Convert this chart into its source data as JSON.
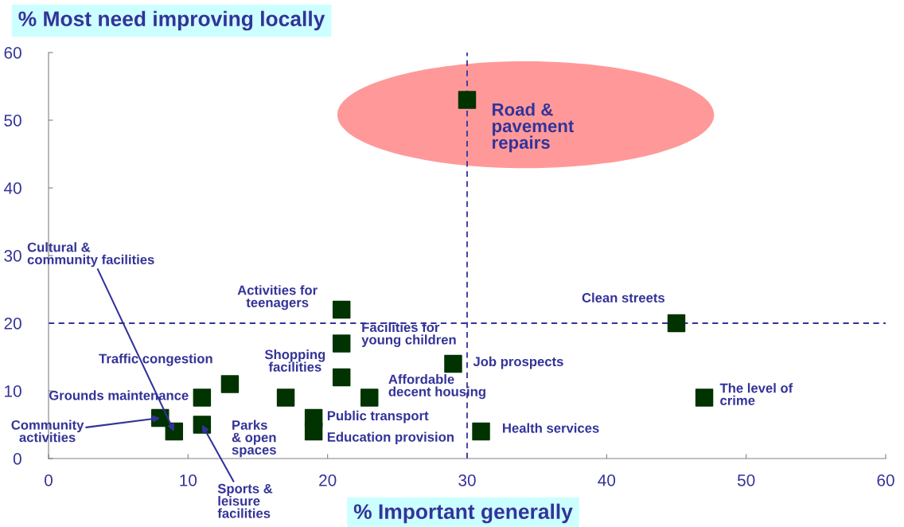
{
  "chart_data": {
    "type": "scatter",
    "xlabel": "% Important generally",
    "ylabel": "% Most need improving locally",
    "x": [
      30,
      45,
      47,
      31,
      29,
      21,
      21,
      21,
      23,
      19,
      19,
      17,
      13,
      11,
      11,
      9,
      8
    ],
    "series": [
      {
        "color": "#003300",
        "values": [
          53,
          20,
          9,
          4,
          14,
          22,
          17,
          12,
          9,
          6,
          4,
          9,
          11,
          9,
          5,
          4,
          6
        ]
      }
    ],
    "marker": "square",
    "xlim": [
      0,
      60
    ],
    "ylim": [
      0,
      60
    ],
    "xticks": [
      0,
      10,
      20,
      30,
      40,
      50,
      60
    ],
    "yticks": [
      0,
      10,
      20,
      30,
      40,
      50,
      60
    ],
    "grid": false,
    "legend": false,
    "ref_lines": [
      {
        "axis": "x",
        "value": 30,
        "color": "#333399",
        "line_style": "dashed"
      },
      {
        "axis": "y",
        "value": 20,
        "color": "#333399",
        "line_style": "dashed"
      }
    ],
    "annotations": [
      {
        "text": "Road &\npavement\nrepairs",
        "x": 30,
        "y": 53
      },
      {
        "text": "Clean streets",
        "x": 45,
        "y": 20
      },
      {
        "text": "The level of\ncrime",
        "x": 47,
        "y": 9
      },
      {
        "text": "Health services",
        "x": 31,
        "y": 4
      },
      {
        "text": "Job prospects",
        "x": 29,
        "y": 14
      },
      {
        "text": "Activities for\nteenagers",
        "x": 21,
        "y": 22
      },
      {
        "text": "Facilities for\nyoung children",
        "x": 21,
        "y": 17
      },
      {
        "text": "Shopping\nfacilities",
        "x": 21,
        "y": 12
      },
      {
        "text": "Affordable\ndecent housing",
        "x": 23,
        "y": 9
      },
      {
        "text": "Public transport",
        "x": 19,
        "y": 6
      },
      {
        "text": "Education provision",
        "x": 19,
        "y": 4
      },
      {
        "text": "Parks\n& open\nspaces",
        "x": 17,
        "y": 9
      },
      {
        "text": "Traffic congestion",
        "x": 13,
        "y": 11
      },
      {
        "text": "Grounds maintenance",
        "x": 11,
        "y": 9
      },
      {
        "text": "Sports &\nleisure\nfacilities",
        "x": 11,
        "y": 5
      },
      {
        "text": "Cultural &\ncommunity facilities",
        "x": 9,
        "y": 4
      },
      {
        "text": "Community\nactivities",
        "x": 8,
        "y": 6
      }
    ]
  }
}
